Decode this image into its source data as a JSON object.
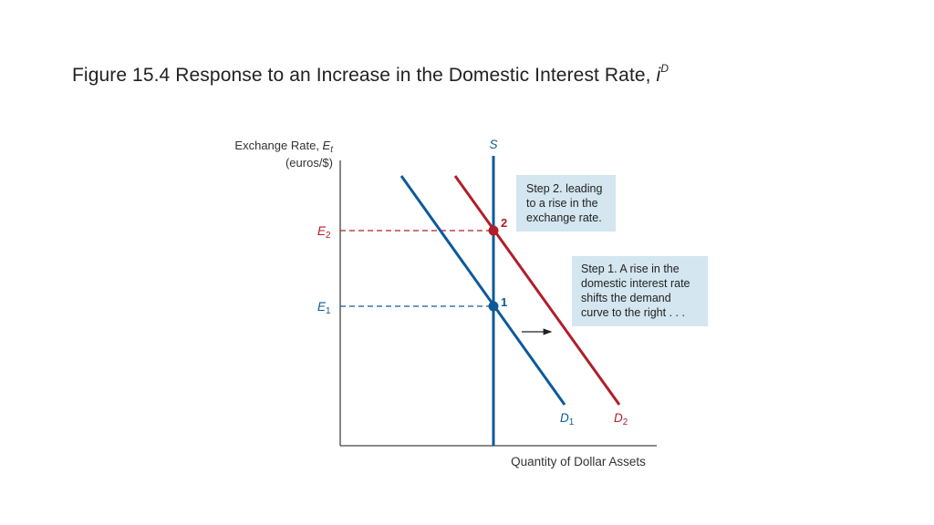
{
  "title": {
    "text": "Figure 15.4 Response to an Increase in the Domestic Interest Rate, ",
    "symbol": "i",
    "superscript": "D"
  },
  "axes": {
    "y_label_line1": "Exchange Rate, ",
    "y_label_symbol": "E",
    "y_label_subscript": "t",
    "y_label_line2": "(euros/$)",
    "x_label": "Quantity of Dollar Assets"
  },
  "curves": {
    "supply_label": "S",
    "d1_label": "D",
    "d1_sub": "1",
    "d2_label": "D",
    "d2_sub": "2"
  },
  "levels": {
    "e1_label": "E",
    "e1_sub": "1",
    "e2_label": "E",
    "e2_sub": "2"
  },
  "points": {
    "point1": "1",
    "point2": "2"
  },
  "callouts": {
    "step2": [
      "Step 2. leading",
      "to a rise in the",
      "exchange rate."
    ],
    "step1": [
      "Step 1. A rise in the",
      "domestic interest rate",
      "shifts the demand",
      "curve to the right . . ."
    ]
  },
  "colors": {
    "blue": "#0d5a9a",
    "red": "#b01e2a",
    "callout_bg": "#d4e6ef",
    "axis": "#444444"
  }
}
